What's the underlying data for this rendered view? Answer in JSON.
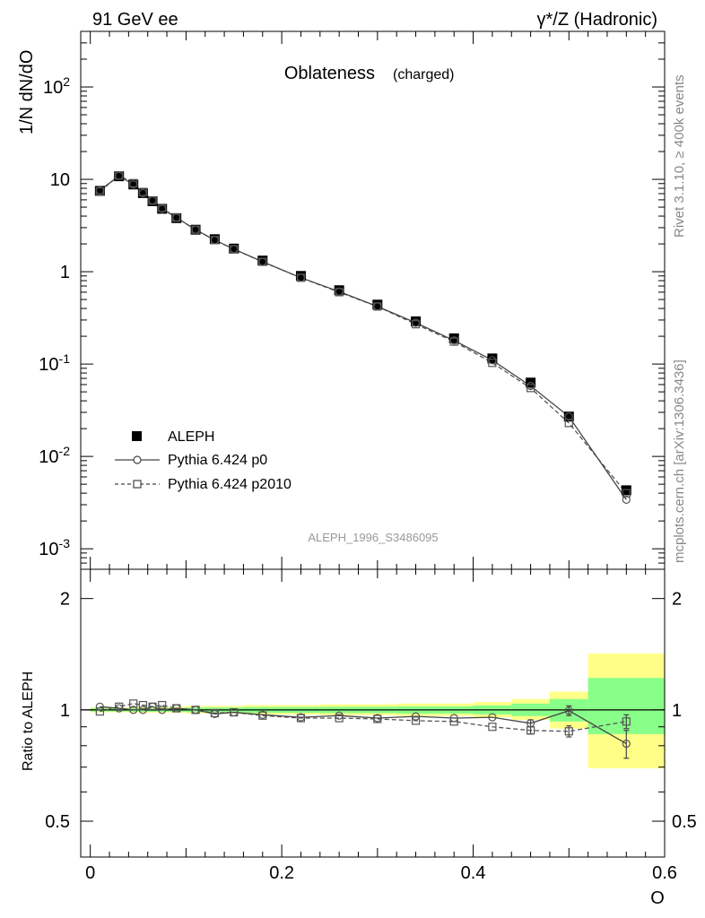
{
  "header": {
    "left": "91 GeV ee",
    "right": "γ*/Z (Hadronic)"
  },
  "side_text": {
    "rivet": "Rivet 3.1.10, ≥ 400k events",
    "mcplots": "mcplots.cern.ch [arXiv:1306.3436]"
  },
  "chart_data": [
    {
      "type": "scatter",
      "title": "Oblateness",
      "subtitle": "(charged)",
      "ylabel": "1/N dN/dO",
      "y_scale": "log",
      "ylim": [
        0.0006,
        400
      ],
      "xlim": [
        -0.01,
        0.6
      ],
      "watermark": "ALEPH_1996_S3486095",
      "legend_position": "bottom-left",
      "y_ticks": [
        {
          "value": 0.001,
          "base": "10",
          "exp": "-3"
        },
        {
          "value": 0.01,
          "base": "10",
          "exp": "-2"
        },
        {
          "value": 0.1,
          "base": "10",
          "exp": "-1"
        },
        {
          "value": 1,
          "base": "1",
          "exp": ""
        },
        {
          "value": 10,
          "base": "10",
          "exp": ""
        },
        {
          "value": 100,
          "base": "10",
          "exp": "2"
        }
      ],
      "x": [
        0.01,
        0.03,
        0.045,
        0.055,
        0.065,
        0.075,
        0.09,
        0.11,
        0.13,
        0.15,
        0.18,
        0.22,
        0.26,
        0.3,
        0.34,
        0.38,
        0.42,
        0.46,
        0.5,
        0.56
      ],
      "series": [
        {
          "name": "ALEPH",
          "style": "filled-square",
          "values": [
            7.5,
            10.8,
            8.8,
            7.1,
            5.8,
            4.8,
            3.8,
            2.85,
            2.25,
            1.78,
            1.32,
            0.9,
            0.63,
            0.44,
            0.29,
            0.19,
            0.115,
            0.063,
            0.027,
            0.0043
          ]
        },
        {
          "name": "Pythia 6.424 p0",
          "style": "open-circle-solid",
          "values": [
            7.6,
            10.9,
            8.8,
            7.1,
            5.9,
            4.8,
            3.85,
            2.85,
            2.2,
            1.76,
            1.28,
            0.86,
            0.61,
            0.42,
            0.28,
            0.18,
            0.11,
            0.058,
            0.027,
            0.0034
          ]
        },
        {
          "name": "Pythia 6.424 p2010",
          "style": "open-square-dashed",
          "values": [
            7.4,
            11.0,
            9.1,
            7.3,
            5.9,
            4.9,
            3.85,
            2.85,
            2.2,
            1.75,
            1.28,
            0.86,
            0.6,
            0.42,
            0.27,
            0.175,
            0.103,
            0.055,
            0.023,
            0.004
          ]
        }
      ]
    },
    {
      "type": "scatter",
      "ylabel": "Ratio to ALEPH",
      "xlabel": "O",
      "ylim": [
        0.4,
        2.4
      ],
      "xlim": [
        -0.01,
        0.6
      ],
      "x_ticks": [
        "0",
        "0.2",
        "0.4",
        "0.6"
      ],
      "y_ticks": [
        "0.5",
        "1",
        "2"
      ],
      "bands": [
        {
          "x0": 0.0,
          "x1": 0.04,
          "yellow": [
            0.985,
            1.015
          ],
          "green": [
            0.99,
            1.01
          ]
        },
        {
          "x0": 0.04,
          "x1": 0.1,
          "yellow": [
            0.982,
            1.02
          ],
          "green": [
            0.988,
            1.012
          ]
        },
        {
          "x0": 0.1,
          "x1": 0.16,
          "yellow": [
            0.978,
            1.025
          ],
          "green": [
            0.985,
            1.015
          ]
        },
        {
          "x0": 0.16,
          "x1": 0.24,
          "yellow": [
            0.972,
            1.03
          ],
          "green": [
            0.982,
            1.018
          ]
        },
        {
          "x0": 0.24,
          "x1": 0.32,
          "yellow": [
            0.968,
            1.035
          ],
          "green": [
            0.98,
            1.02
          ]
        },
        {
          "x0": 0.32,
          "x1": 0.4,
          "yellow": [
            0.963,
            1.04
          ],
          "green": [
            0.977,
            1.023
          ]
        },
        {
          "x0": 0.4,
          "x1": 0.44,
          "yellow": [
            0.955,
            1.05
          ],
          "green": [
            0.972,
            1.028
          ]
        },
        {
          "x0": 0.44,
          "x1": 0.48,
          "yellow": [
            0.94,
            1.07
          ],
          "green": [
            0.962,
            1.04
          ]
        },
        {
          "x0": 0.48,
          "x1": 0.52,
          "yellow": [
            0.89,
            1.12
          ],
          "green": [
            0.93,
            1.07
          ]
        },
        {
          "x0": 0.52,
          "x1": 0.6,
          "yellow": [
            0.695,
            1.42
          ],
          "green": [
            0.86,
            1.22
          ]
        }
      ],
      "x": [
        0.01,
        0.03,
        0.045,
        0.055,
        0.065,
        0.075,
        0.09,
        0.11,
        0.13,
        0.15,
        0.18,
        0.22,
        0.26,
        0.3,
        0.34,
        0.38,
        0.42,
        0.46,
        0.5,
        0.56
      ],
      "series": [
        {
          "name": "Pythia 6.424 p0",
          "style": "open-circle-solid",
          "values": [
            1.02,
            1.01,
            1.0,
            1.0,
            1.02,
            1.0,
            1.01,
            1.0,
            0.975,
            0.985,
            0.97,
            0.955,
            0.965,
            0.95,
            0.96,
            0.95,
            0.955,
            0.92,
            0.995,
            0.81
          ],
          "errors": [
            0,
            0,
            0,
            0,
            0,
            0,
            0,
            0,
            0,
            0,
            0,
            0,
            0,
            0,
            0,
            0,
            0,
            0.02,
            0.03,
            0.07
          ]
        },
        {
          "name": "Pythia 6.424 p2010",
          "style": "open-square-dashed",
          "values": [
            0.99,
            1.02,
            1.04,
            1.03,
            1.02,
            1.03,
            1.01,
            1.0,
            0.98,
            0.985,
            0.965,
            0.95,
            0.95,
            0.945,
            0.935,
            0.93,
            0.9,
            0.88,
            0.875,
            0.93
          ],
          "errors": [
            0,
            0,
            0,
            0,
            0,
            0,
            0,
            0,
            0,
            0,
            0,
            0,
            0,
            0,
            0,
            0,
            0,
            0.02,
            0.03,
            0.04
          ]
        }
      ]
    }
  ]
}
